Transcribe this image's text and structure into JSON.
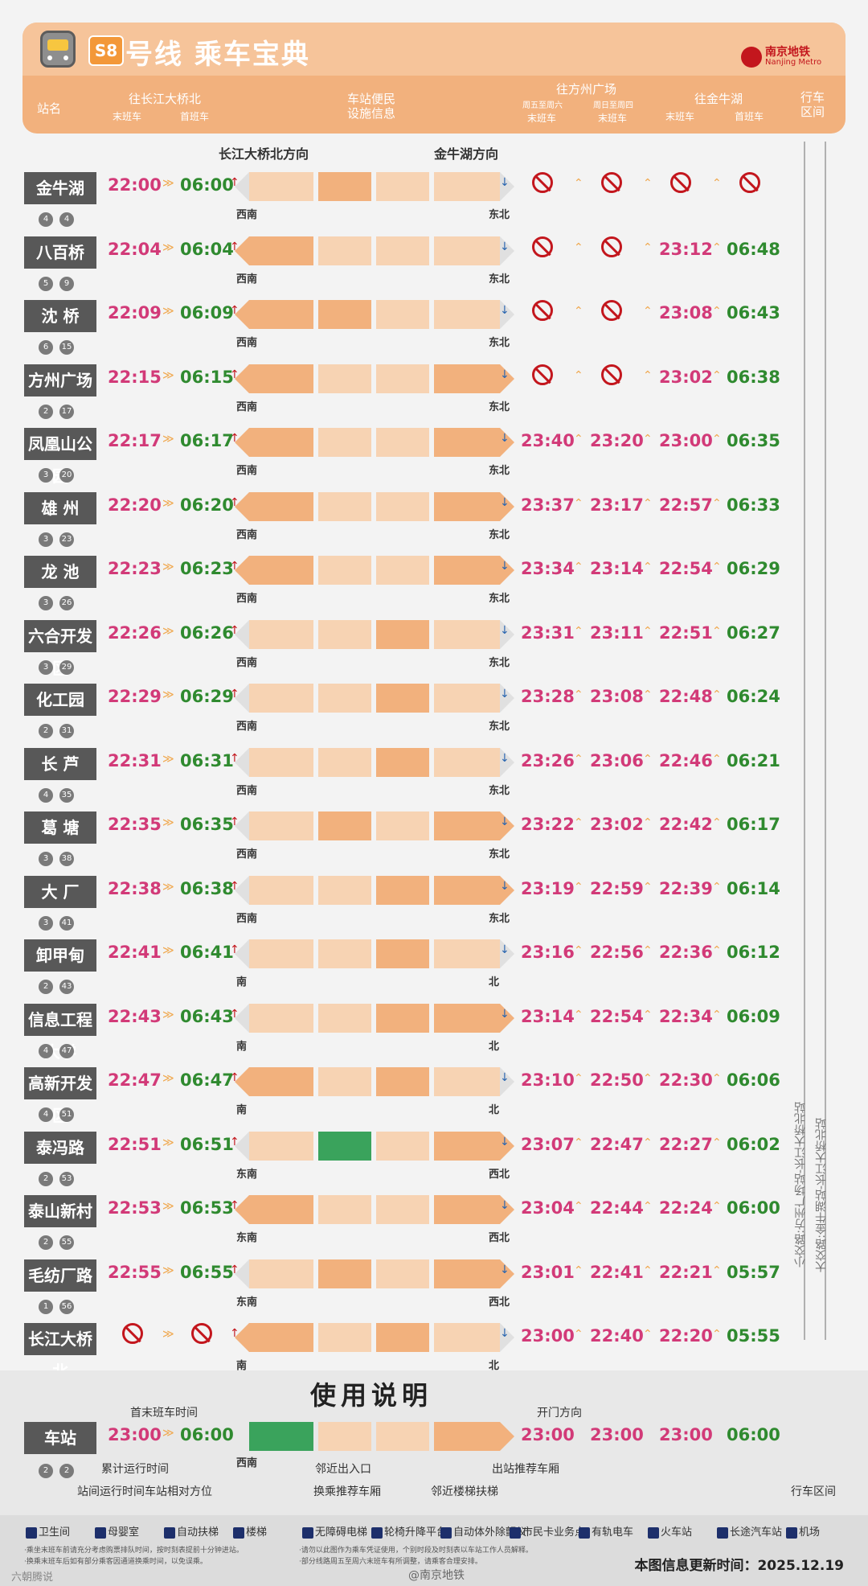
{
  "header": {
    "line_badge": "S8",
    "title": "号线 乘车宝典",
    "logo_cn": "南京地铁",
    "logo_en": "Nanjing Metro",
    "col_station": "站名",
    "col_to_north": "往长江大桥北",
    "col_to_north_last": "末班车",
    "col_to_north_first": "首班车",
    "col_facilities": "车站便民\n设施信息",
    "col_to_fangzhou": "往方州广场",
    "col_fz_weekend": "周五至周六",
    "col_fz_weekday": "周日至周四",
    "col_fz_last1": "末班车",
    "col_fz_last2": "末班车",
    "col_to_jinniu": "往金牛湖",
    "col_jn_last": "末班车",
    "col_jn_first": "首班车",
    "col_interval": "行车\n区间",
    "dir_north": "长江大桥北方向",
    "dir_south": "金牛湖方向"
  },
  "stations": [
    {
      "name": "金牛湖",
      "mins": [
        "4",
        "4"
      ],
      "t1": "22:00",
      "t2": "06:00",
      "t3": "",
      "t4": "",
      "t5": "",
      "t6": "",
      "dirL": "西南",
      "dirR": "东北",
      "no3": true,
      "no4": true,
      "no5": true,
      "no6": true
    },
    {
      "name": "八百桥",
      "mins": [
        "5",
        "9"
      ],
      "t1": "22:04",
      "t2": "06:04",
      "t3": "",
      "t4": "",
      "t5": "23:12",
      "t6": "06:48",
      "dirL": "西南",
      "dirR": "东北",
      "no3": true,
      "no4": true
    },
    {
      "name": "沈 桥",
      "mins": [
        "6",
        "15"
      ],
      "t1": "22:09",
      "t2": "06:09",
      "t3": "",
      "t4": "",
      "t5": "23:08",
      "t6": "06:43",
      "dirL": "西南",
      "dirR": "东北",
      "no3": true,
      "no4": true
    },
    {
      "name": "方州广场",
      "mins": [
        "2",
        "17"
      ],
      "t1": "22:15",
      "t2": "06:15",
      "t3": "",
      "t4": "",
      "t5": "23:02",
      "t6": "06:38",
      "dirL": "西南",
      "dirR": "东北",
      "no3": true,
      "no4": true
    },
    {
      "name": "凤凰山公园",
      "mins": [
        "3",
        "20"
      ],
      "t1": "22:17",
      "t2": "06:17",
      "t3": "23:40",
      "t4": "23:20",
      "t5": "23:00",
      "t6": "06:35",
      "dirL": "西南",
      "dirR": "东北"
    },
    {
      "name": "雄 州",
      "mins": [
        "3",
        "23"
      ],
      "t1": "22:20",
      "t2": "06:20",
      "t3": "23:37",
      "t4": "23:17",
      "t5": "22:57",
      "t6": "06:33",
      "dirL": "西南",
      "dirR": "东北"
    },
    {
      "name": "龙 池",
      "mins": [
        "3",
        "26"
      ],
      "t1": "22:23",
      "t2": "06:23",
      "t3": "23:34",
      "t4": "23:14",
      "t5": "22:54",
      "t6": "06:29",
      "dirL": "西南",
      "dirR": "东北"
    },
    {
      "name": "六合开发区",
      "mins": [
        "3",
        "29"
      ],
      "t1": "22:26",
      "t2": "06:26",
      "t3": "23:31",
      "t4": "23:11",
      "t5": "22:51",
      "t6": "06:27",
      "dirL": "西南",
      "dirR": "东北"
    },
    {
      "name": "化工园",
      "mins": [
        "2",
        "31"
      ],
      "t1": "22:29",
      "t2": "06:29",
      "t3": "23:28",
      "t4": "23:08",
      "t5": "22:48",
      "t6": "06:24",
      "dirL": "西南",
      "dirR": "东北"
    },
    {
      "name": "长 芦",
      "mins": [
        "4",
        "35"
      ],
      "t1": "22:31",
      "t2": "06:31",
      "t3": "23:26",
      "t4": "23:06",
      "t5": "22:46",
      "t6": "06:21",
      "dirL": "西南",
      "dirR": "东北"
    },
    {
      "name": "葛 塘",
      "mins": [
        "3",
        "38"
      ],
      "t1": "22:35",
      "t2": "06:35",
      "t3": "23:22",
      "t4": "23:02",
      "t5": "22:42",
      "t6": "06:17",
      "dirL": "西南",
      "dirR": "东北"
    },
    {
      "name": "大 厂",
      "mins": [
        "3",
        "41"
      ],
      "t1": "22:38",
      "t2": "06:38",
      "t3": "23:19",
      "t4": "22:59",
      "t5": "22:39",
      "t6": "06:14",
      "dirL": "西南",
      "dirR": "东北"
    },
    {
      "name": "卸甲甸",
      "mins": [
        "2",
        "43"
      ],
      "t1": "22:41",
      "t2": "06:41",
      "t3": "23:16",
      "t4": "22:56",
      "t5": "22:36",
      "t6": "06:12",
      "dirL": "南",
      "dirR": "北"
    },
    {
      "name": "信息工程大学",
      "mins": [
        "4",
        "47"
      ],
      "t1": "22:43",
      "t2": "06:43",
      "t3": "23:14",
      "t4": "22:54",
      "t5": "22:34",
      "t6": "06:09",
      "dirL": "南",
      "dirR": "北"
    },
    {
      "name": "高新开发区",
      "mins": [
        "4",
        "51"
      ],
      "t1": "22:47",
      "t2": "06:47",
      "t3": "23:10",
      "t4": "22:50",
      "t5": "22:30",
      "t6": "06:06",
      "dirL": "南",
      "dirR": "北"
    },
    {
      "name": "泰冯路",
      "mins": [
        "2",
        "53"
      ],
      "t1": "22:51",
      "t2": "06:51",
      "t3": "23:07",
      "t4": "22:47",
      "t5": "22:27",
      "t6": "06:02",
      "dirL": "东南",
      "dirR": "西北"
    },
    {
      "name": "泰山新村",
      "mins": [
        "2",
        "55"
      ],
      "t1": "22:53",
      "t2": "06:53",
      "t3": "23:04",
      "t4": "22:44",
      "t5": "22:24",
      "t6": "06:00",
      "dirL": "东南",
      "dirR": "西北"
    },
    {
      "name": "毛纺厂路",
      "mins": [
        "1",
        "56"
      ],
      "t1": "22:55",
      "t2": "06:55",
      "t3": "23:01",
      "t4": "22:41",
      "t5": "22:21",
      "t6": "05:57",
      "dirL": "东南",
      "dirR": "西北"
    },
    {
      "name": "长江大桥北",
      "mins": [],
      "t1": "",
      "t2": "",
      "t3": "23:00",
      "t4": "22:40",
      "t5": "22:20",
      "t6": "05:55",
      "dirL": "南",
      "dirR": "北",
      "no1": true,
      "no2": true
    }
  ],
  "interval": {
    "small": "小交路:方州广场站-长江大桥北站",
    "large": "大交路:金牛湖站-长江大桥北站"
  },
  "usage": {
    "title": "使用说明",
    "station": "车站",
    "mins": [
      "2",
      "2"
    ],
    "t1": "23:00",
    "t2": "06:00",
    "t3": "23:00",
    "t4": "23:00",
    "t5": "23:00",
    "t6": "06:00",
    "dirL": "西南",
    "note_times": "首末班车时间",
    "note_cum": "累计运行时间",
    "note_seg": "站间运行时间车站相对方位",
    "note_exit": "邻近出入口",
    "note_transfer": "换乘推荐车厢",
    "note_stairs": "邻近楼梯扶梯",
    "note_out": "出站推荐车厢",
    "note_door": "开门方向",
    "note_interval": "行车区间"
  },
  "legend": {
    "items": [
      "卫生间",
      "母婴室",
      "自动扶梯",
      "楼梯",
      "无障碍电梯",
      "轮椅升降平台",
      "自动体外除颤仪",
      "市民卡业务点",
      "有轨电车",
      "火车站",
      "长途汽车站",
      "机场"
    ],
    "foot1": "·乘坐末班车前请充分考虑购票排队时间，按时刻表提前十分钟进站。",
    "foot2": "·换乘末班车后如有部分乘客因通道换乘时间，以免误乘。",
    "foot3": "·请勿以此图作为乘车凭证使用，个别时段及时刻表以车站工作人员解释。",
    "foot4": "·部分线路周五至周六末班车有所调整，请乘客合理安排。",
    "updated": "本图信息更新时间：2025.12.19",
    "watermark": "@南京地铁",
    "corner": "六朝腾说"
  }
}
